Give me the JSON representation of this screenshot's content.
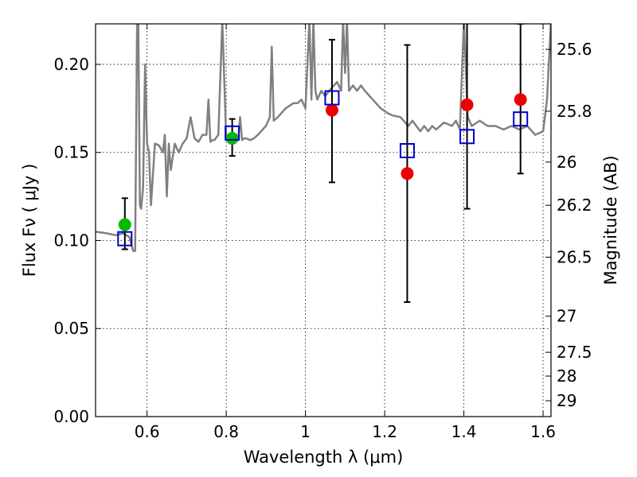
{
  "chart_data": {
    "type": "scatter",
    "xlabel": "Wavelength  λ (μm)",
    "ylabel": "Flux  Fν  ( μJy )",
    "y2label": "Magnitude (AB)",
    "xlim": [
      0.47,
      1.62
    ],
    "ylim": [
      0.0,
      0.223
    ],
    "xticks": [
      0.6,
      0.8,
      1.0,
      1.2,
      1.4,
      1.6
    ],
    "xtick_labels": [
      "0.6",
      "0.8",
      "1",
      "1.2",
      "1.4",
      "1.6"
    ],
    "yticks": [
      0.0,
      0.05,
      0.1,
      0.15,
      0.2
    ],
    "ytick_labels": [
      "0.00",
      "0.05",
      "0.10",
      "0.15",
      "0.20"
    ],
    "y2ticks": [
      {
        "flux": 0.2085,
        "label": "25.6"
      },
      {
        "flux": 0.1734,
        "label": "25.8"
      },
      {
        "flux": 0.1445,
        "label": "26"
      },
      {
        "flux": 0.12,
        "label": "26.2"
      },
      {
        "flux": 0.0905,
        "label": "26.5"
      },
      {
        "flux": 0.057,
        "label": "27"
      },
      {
        "flux": 0.0365,
        "label": "27.5"
      },
      {
        "flux": 0.023,
        "label": "28"
      },
      {
        "flux": 0.009,
        "label": "29"
      }
    ],
    "grid": true,
    "colors": {
      "spectrum": "#808080",
      "model": "#0000cc",
      "optical": "#00bb00",
      "nir": "#ee0000",
      "errorbar": "#000000"
    },
    "series": [
      {
        "name": "Model spectrum",
        "style": "line",
        "x": [
          0.47,
          0.5,
          0.52,
          0.54,
          0.555,
          0.565,
          0.57,
          0.575,
          0.578,
          0.582,
          0.585,
          0.59,
          0.595,
          0.6,
          0.605,
          0.61,
          0.62,
          0.63,
          0.64,
          0.645,
          0.65,
          0.655,
          0.66,
          0.67,
          0.68,
          0.69,
          0.7,
          0.71,
          0.72,
          0.73,
          0.74,
          0.75,
          0.755,
          0.76,
          0.765,
          0.77,
          0.78,
          0.79,
          0.8,
          0.81,
          0.82,
          0.83,
          0.835,
          0.84,
          0.845,
          0.85,
          0.86,
          0.87,
          0.88,
          0.9,
          0.91,
          0.915,
          0.92,
          0.93,
          0.95,
          0.97,
          0.98,
          0.99,
          1.0,
          1.01,
          1.015,
          1.02,
          1.025,
          1.03,
          1.04,
          1.05,
          1.06,
          1.08,
          1.09,
          1.095,
          1.1,
          1.105,
          1.11,
          1.12,
          1.13,
          1.14,
          1.15,
          1.17,
          1.19,
          1.21,
          1.22,
          1.24,
          1.26,
          1.27,
          1.28,
          1.29,
          1.3,
          1.31,
          1.32,
          1.33,
          1.35,
          1.37,
          1.38,
          1.39,
          1.4,
          1.41,
          1.42,
          1.44,
          1.46,
          1.48,
          1.5,
          1.52,
          1.54,
          1.56,
          1.58,
          1.6,
          1.61,
          1.62
        ],
        "y": [
          0.105,
          0.104,
          0.103,
          0.104,
          0.102,
          0.094,
          0.094,
          0.225,
          0.225,
          0.12,
          0.118,
          0.13,
          0.2,
          0.155,
          0.15,
          0.12,
          0.155,
          0.154,
          0.15,
          0.16,
          0.125,
          0.155,
          0.14,
          0.155,
          0.15,
          0.155,
          0.158,
          0.17,
          0.158,
          0.156,
          0.16,
          0.16,
          0.18,
          0.156,
          0.157,
          0.157,
          0.16,
          0.225,
          0.158,
          0.16,
          0.157,
          0.157,
          0.17,
          0.157,
          0.158,
          0.158,
          0.157,
          0.158,
          0.16,
          0.165,
          0.17,
          0.21,
          0.168,
          0.17,
          0.175,
          0.178,
          0.178,
          0.18,
          0.175,
          0.225,
          0.18,
          0.225,
          0.185,
          0.18,
          0.185,
          0.182,
          0.185,
          0.19,
          0.185,
          0.225,
          0.195,
          0.225,
          0.185,
          0.188,
          0.185,
          0.188,
          0.185,
          0.18,
          0.175,
          0.172,
          0.171,
          0.17,
          0.165,
          0.168,
          0.165,
          0.162,
          0.165,
          0.162,
          0.165,
          0.163,
          0.167,
          0.165,
          0.168,
          0.163,
          0.225,
          0.17,
          0.165,
          0.168,
          0.165,
          0.165,
          0.163,
          0.165,
          0.163,
          0.165,
          0.16,
          0.162,
          0.18,
          0.225
        ]
      },
      {
        "name": "Model photometry",
        "style": "open-square",
        "x": [
          0.544,
          0.815,
          1.067,
          1.257,
          1.408,
          1.543
        ],
        "y": [
          0.101,
          0.161,
          0.181,
          0.151,
          0.159,
          0.169
        ]
      },
      {
        "name": "Optical photometry",
        "style": "filled-circle",
        "x": [
          0.544,
          0.815
        ],
        "y": [
          0.109,
          0.158
        ],
        "err_low": [
          0.095,
          0.148
        ],
        "err_high": [
          0.124,
          0.169
        ]
      },
      {
        "name": "NIR photometry",
        "style": "filled-circle",
        "x": [
          1.067,
          1.257,
          1.408,
          1.543
        ],
        "y": [
          0.174,
          0.138,
          0.177,
          0.18
        ],
        "err_low": [
          0.133,
          0.065,
          0.118,
          0.138
        ],
        "err_high": [
          0.214,
          0.211,
          0.225,
          0.223
        ]
      }
    ]
  }
}
